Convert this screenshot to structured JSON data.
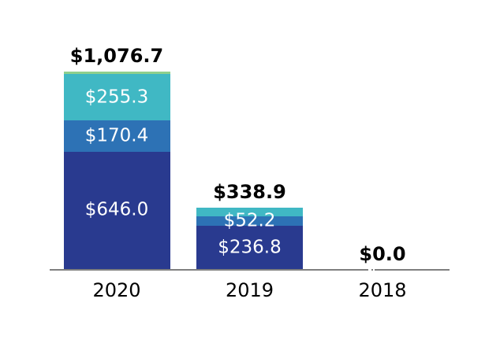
{
  "chart_data": {
    "type": "bar",
    "stacked": true,
    "orientation": "vertical",
    "title": "",
    "xlabel": "",
    "ylabel": "",
    "legend": "none",
    "grid": false,
    "background": "#ffffff",
    "categories": [
      "2020",
      "2019",
      "2018"
    ],
    "series": [
      {
        "name": "segment-dark-blue",
        "color": "#293a8f",
        "values": [
          646.0,
          236.8,
          0
        ],
        "labels": [
          "$646.0",
          "$236.8",
          ""
        ]
      },
      {
        "name": "segment-medium-blue",
        "color": "#2d72b5",
        "values": [
          170.4,
          52.2,
          0
        ],
        "labels": [
          "$170.4",
          "$52.2",
          ""
        ]
      },
      {
        "name": "segment-teal",
        "color": "#40b8c4",
        "values": [
          255.3,
          49.9,
          0
        ],
        "labels": [
          "$255.3",
          "",
          ""
        ]
      },
      {
        "name": "segment-light-green",
        "color": "#8fd08c",
        "values": [
          5.0,
          0,
          0
        ],
        "labels": [
          "",
          "",
          ""
        ]
      }
    ],
    "totals": [
      1076.7,
      338.9,
      0.0
    ],
    "total_labels": [
      "$1,076.7",
      "$338.9",
      "$0.0"
    ],
    "ylim": [
      0,
      1100
    ],
    "colors": {
      "segment_label_text": "#ffffff",
      "total_label_text": "#000000",
      "tick_label_text": "#000000",
      "axis_line": "#7f7f7f"
    }
  }
}
